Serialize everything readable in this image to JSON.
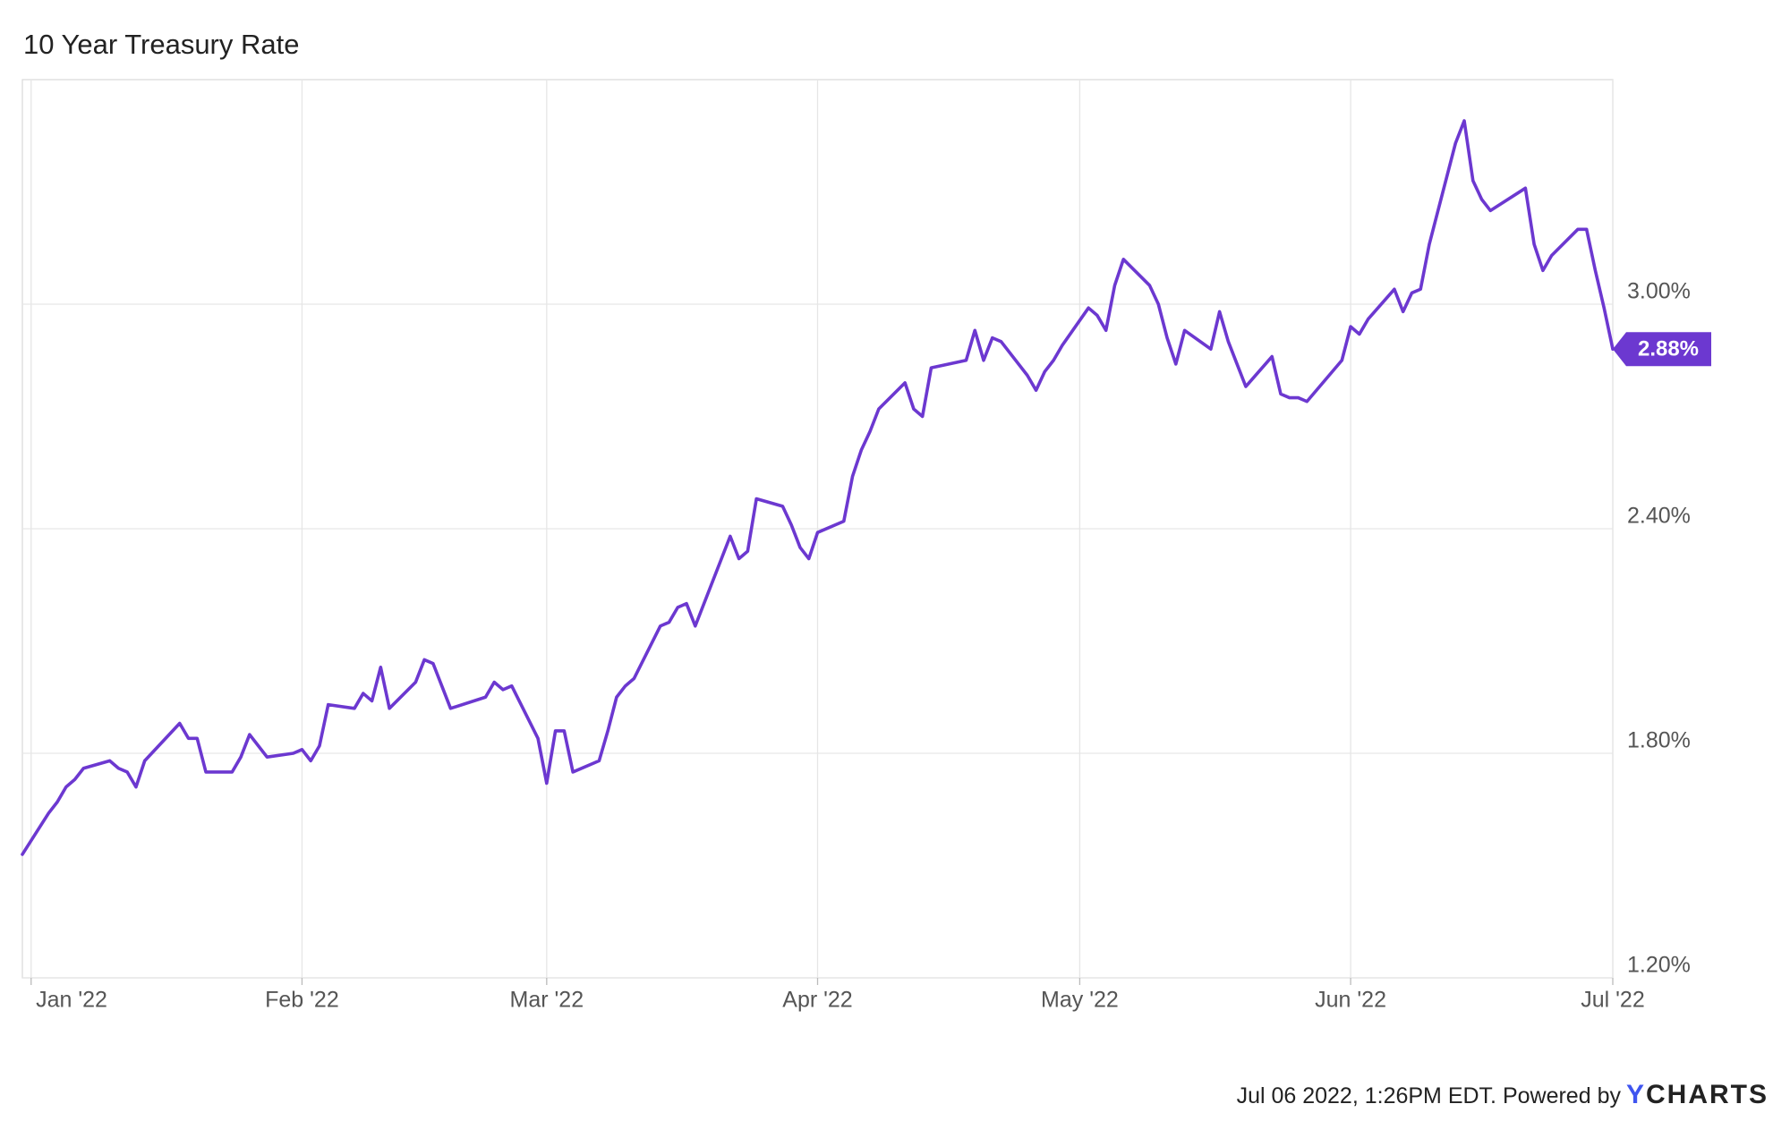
{
  "chart_data": {
    "type": "line",
    "title": "10 Year Treasury Rate",
    "color": "#6c38d0",
    "x": [
      "2021-12-31",
      "2022-01-03",
      "2022-01-04",
      "2022-01-05",
      "2022-01-06",
      "2022-01-07",
      "2022-01-10",
      "2022-01-11",
      "2022-01-12",
      "2022-01-13",
      "2022-01-14",
      "2022-01-18",
      "2022-01-19",
      "2022-01-20",
      "2022-01-21",
      "2022-01-24",
      "2022-01-25",
      "2022-01-26",
      "2022-01-27",
      "2022-01-28",
      "2022-01-31",
      "2022-02-01",
      "2022-02-02",
      "2022-02-03",
      "2022-02-04",
      "2022-02-07",
      "2022-02-08",
      "2022-02-09",
      "2022-02-10",
      "2022-02-11",
      "2022-02-14",
      "2022-02-15",
      "2022-02-16",
      "2022-02-17",
      "2022-02-18",
      "2022-02-22",
      "2022-02-23",
      "2022-02-24",
      "2022-02-25",
      "2022-02-28",
      "2022-03-01",
      "2022-03-02",
      "2022-03-03",
      "2022-03-04",
      "2022-03-07",
      "2022-03-08",
      "2022-03-09",
      "2022-03-10",
      "2022-03-11",
      "2022-03-14",
      "2022-03-15",
      "2022-03-16",
      "2022-03-17",
      "2022-03-18",
      "2022-03-21",
      "2022-03-22",
      "2022-03-23",
      "2022-03-24",
      "2022-03-25",
      "2022-03-28",
      "2022-03-29",
      "2022-03-30",
      "2022-03-31",
      "2022-04-01",
      "2022-04-04",
      "2022-04-05",
      "2022-04-06",
      "2022-04-07",
      "2022-04-08",
      "2022-04-11",
      "2022-04-12",
      "2022-04-13",
      "2022-04-14",
      "2022-04-18",
      "2022-04-19",
      "2022-04-20",
      "2022-04-21",
      "2022-04-22",
      "2022-04-25",
      "2022-04-26",
      "2022-04-27",
      "2022-04-28",
      "2022-04-29",
      "2022-05-02",
      "2022-05-03",
      "2022-05-04",
      "2022-05-05",
      "2022-05-06",
      "2022-05-09",
      "2022-05-10",
      "2022-05-11",
      "2022-05-12",
      "2022-05-13",
      "2022-05-16",
      "2022-05-17",
      "2022-05-18",
      "2022-05-19",
      "2022-05-20",
      "2022-05-23",
      "2022-05-24",
      "2022-05-25",
      "2022-05-26",
      "2022-05-27",
      "2022-05-31",
      "2022-06-01",
      "2022-06-02",
      "2022-06-03",
      "2022-06-06",
      "2022-06-07",
      "2022-06-08",
      "2022-06-09",
      "2022-06-10",
      "2022-06-13",
      "2022-06-14",
      "2022-06-15",
      "2022-06-16",
      "2022-06-17",
      "2022-06-21",
      "2022-06-22",
      "2022-06-23",
      "2022-06-24",
      "2022-06-27",
      "2022-06-28",
      "2022-06-29",
      "2022-06-30",
      "2022-07-01"
    ],
    "values": [
      1.53,
      1.64,
      1.67,
      1.71,
      1.73,
      1.76,
      1.78,
      1.76,
      1.75,
      1.71,
      1.78,
      1.88,
      1.84,
      1.84,
      1.75,
      1.75,
      1.79,
      1.85,
      1.82,
      1.79,
      1.8,
      1.81,
      1.78,
      1.82,
      1.93,
      1.92,
      1.96,
      1.94,
      2.03,
      1.92,
      1.99,
      2.05,
      2.04,
      1.98,
      1.92,
      1.95,
      1.99,
      1.97,
      1.98,
      1.84,
      1.72,
      1.86,
      1.86,
      1.75,
      1.78,
      1.86,
      1.95,
      1.98,
      2.0,
      2.14,
      2.15,
      2.19,
      2.2,
      2.14,
      2.32,
      2.38,
      2.32,
      2.34,
      2.48,
      2.46,
      2.41,
      2.35,
      2.32,
      2.39,
      2.42,
      2.54,
      2.61,
      2.66,
      2.72,
      2.79,
      2.72,
      2.7,
      2.83,
      2.85,
      2.93,
      2.85,
      2.91,
      2.9,
      2.81,
      2.77,
      2.82,
      2.85,
      2.89,
      2.99,
      2.97,
      2.93,
      3.05,
      3.12,
      3.05,
      3.0,
      2.91,
      2.84,
      2.93,
      2.88,
      2.98,
      2.9,
      2.84,
      2.78,
      2.86,
      2.76,
      2.75,
      2.75,
      2.74,
      2.85,
      2.94,
      2.92,
      2.96,
      3.04,
      2.98,
      3.03,
      3.04,
      3.16,
      3.43,
      3.49,
      3.33,
      3.28,
      3.25,
      3.31,
      3.16,
      3.09,
      3.13,
      3.2,
      3.2,
      3.09,
      2.99,
      2.88
    ],
    "value_labels": [
      null,
      null,
      null,
      null,
      null,
      null,
      null,
      null,
      null,
      null,
      null,
      null,
      null,
      null,
      null,
      null,
      null,
      null,
      null,
      null,
      null,
      null,
      null,
      null,
      null,
      null,
      null,
      null,
      null,
      null,
      null,
      null,
      null,
      null,
      null,
      null,
      null,
      null,
      null,
      null,
      null,
      null,
      null,
      null,
      null,
      null,
      null,
      null,
      null,
      null,
      null,
      null,
      null,
      null,
      null,
      null,
      null,
      null,
      null,
      null,
      null,
      null,
      null,
      null,
      null,
      null,
      null,
      null,
      null,
      null,
      null,
      null,
      null,
      null,
      null,
      null,
      null,
      null,
      null,
      null,
      null,
      null,
      null,
      null,
      null,
      null,
      null,
      null,
      null,
      null,
      null,
      null,
      null,
      null,
      null,
      null,
      null,
      null,
      null,
      null,
      null,
      null,
      null,
      null,
      null,
      null,
      null,
      null,
      null,
      null,
      null,
      null,
      null,
      null,
      null,
      null,
      null,
      null,
      null,
      null,
      null,
      null,
      null,
      null,
      null,
      "2.88%"
    ],
    "xlim": [
      "2021-12-31",
      "2022-07-01"
    ],
    "xticks": [
      {
        "value": "2022-01-01",
        "label": "Jan '22"
      },
      {
        "value": "2022-02-01",
        "label": "Feb '22"
      },
      {
        "value": "2022-03-01",
        "label": "Mar '22"
      },
      {
        "value": "2022-04-01",
        "label": "Apr '22"
      },
      {
        "value": "2022-05-01",
        "label": "May '22"
      },
      {
        "value": "2022-06-01",
        "label": "Jun '22"
      },
      {
        "value": "2022-07-01",
        "label": "Jul '22"
      }
    ],
    "ylim": [
      1.2,
      3.6
    ],
    "yticks": [
      {
        "value": 1.2,
        "label": "1.20%"
      },
      {
        "value": 1.8,
        "label": "1.80%"
      },
      {
        "value": 2.4,
        "label": "2.40%"
      },
      {
        "value": 3.0,
        "label": "3.00%"
      }
    ],
    "grid": true,
    "footer": {
      "text": "Jul 06 2022, 1:26PM EDT. Powered by",
      "brand": "YCHARTS"
    }
  }
}
